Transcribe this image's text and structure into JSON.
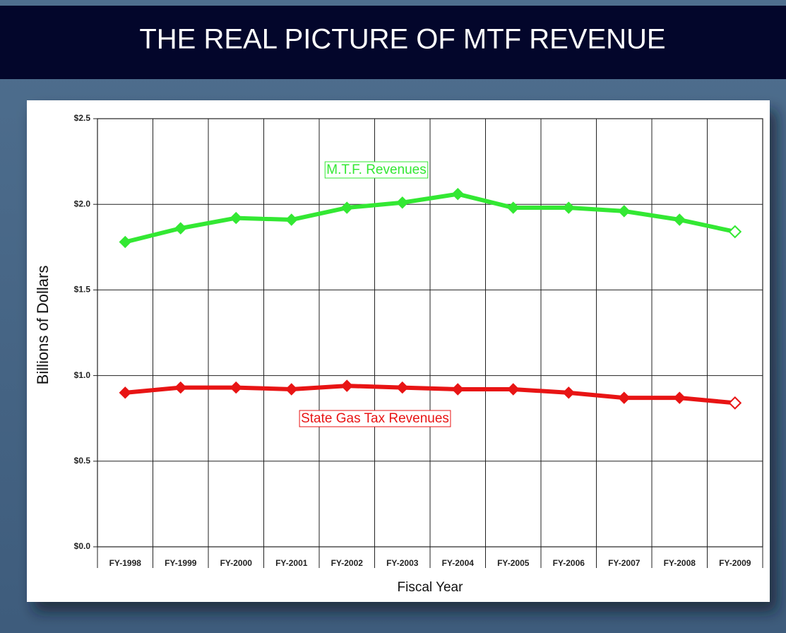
{
  "chart_data": {
    "type": "line",
    "title": "THE REAL PICTURE OF MTF REVENUE",
    "x_label": "Fiscal Year",
    "y_label": "Billions of Dollars",
    "categories": [
      "FY-1998",
      "FY-1999",
      "FY-2000",
      "FY-2001",
      "FY-2002",
      "FY-2003",
      "FY-2004",
      "FY-2005",
      "FY-2006",
      "FY-2007",
      "FY-2008",
      "FY-2009"
    ],
    "series": [
      {
        "name": "M.T.F. Revenues",
        "color": "#33e833",
        "values": [
          1.78,
          1.86,
          1.92,
          1.91,
          1.98,
          2.01,
          2.06,
          1.98,
          1.98,
          1.96,
          1.91,
          1.84
        ]
      },
      {
        "name": "State Gas Tax Revenues",
        "color": "#e81414",
        "values": [
          0.9,
          0.93,
          0.93,
          0.92,
          0.94,
          0.93,
          0.92,
          0.92,
          0.9,
          0.87,
          0.87,
          0.84
        ]
      }
    ],
    "ylim": [
      0,
      2.5
    ],
    "yticks": [
      {
        "value": 0,
        "label": "$0.0"
      },
      {
        "value": 0.5,
        "label": "$0.5"
      },
      {
        "value": 1.0,
        "label": "$1.0"
      },
      {
        "value": 1.5,
        "label": "$1.5"
      },
      {
        "value": 2.0,
        "label": "$2.0"
      },
      {
        "value": 2.5,
        "label": "$2.5"
      }
    ],
    "grid": true
  }
}
